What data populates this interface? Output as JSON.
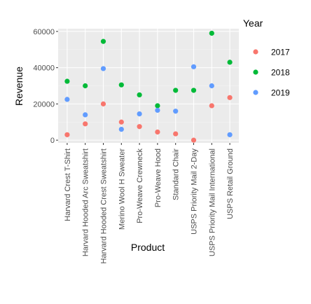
{
  "chart_data": {
    "type": "scatter",
    "xlabel": "Product",
    "ylabel": "Revenue",
    "categories": [
      "Harvard Crest T-Shirt",
      "Harvard Hooded Arc Sweatshirt",
      "Harvard Hooded Crest Sweatshirt",
      "Merino Wool H Sweater",
      "Pro-Weave Crewneck",
      "Pro-Weave Hood",
      "Standard Chair",
      "USPS Priority Mail 2-Day",
      "USPS Priority Mail International",
      "USPS Retail Ground"
    ],
    "ylim": [
      -1500,
      61500
    ],
    "yticks": [
      0,
      20000,
      40000,
      60000
    ],
    "ytick_labels": [
      "0",
      "20000",
      "40000",
      "60000"
    ],
    "grid": true,
    "legend": {
      "title": "Year",
      "position": "right"
    },
    "series": [
      {
        "name": "2017",
        "color": "#F8766D",
        "values": [
          3000,
          9000,
          20000,
          10000,
          7500,
          4500,
          3500,
          0,
          19000,
          23500
        ]
      },
      {
        "name": "2018",
        "color": "#00BA38",
        "values": [
          32500,
          30000,
          54500,
          30500,
          25000,
          19000,
          27500,
          27500,
          59000,
          43000
        ]
      },
      {
        "name": "2019",
        "color": "#619CFF",
        "values": [
          22500,
          14000,
          39500,
          6000,
          14500,
          16500,
          16000,
          40500,
          30000,
          3000
        ]
      }
    ]
  }
}
